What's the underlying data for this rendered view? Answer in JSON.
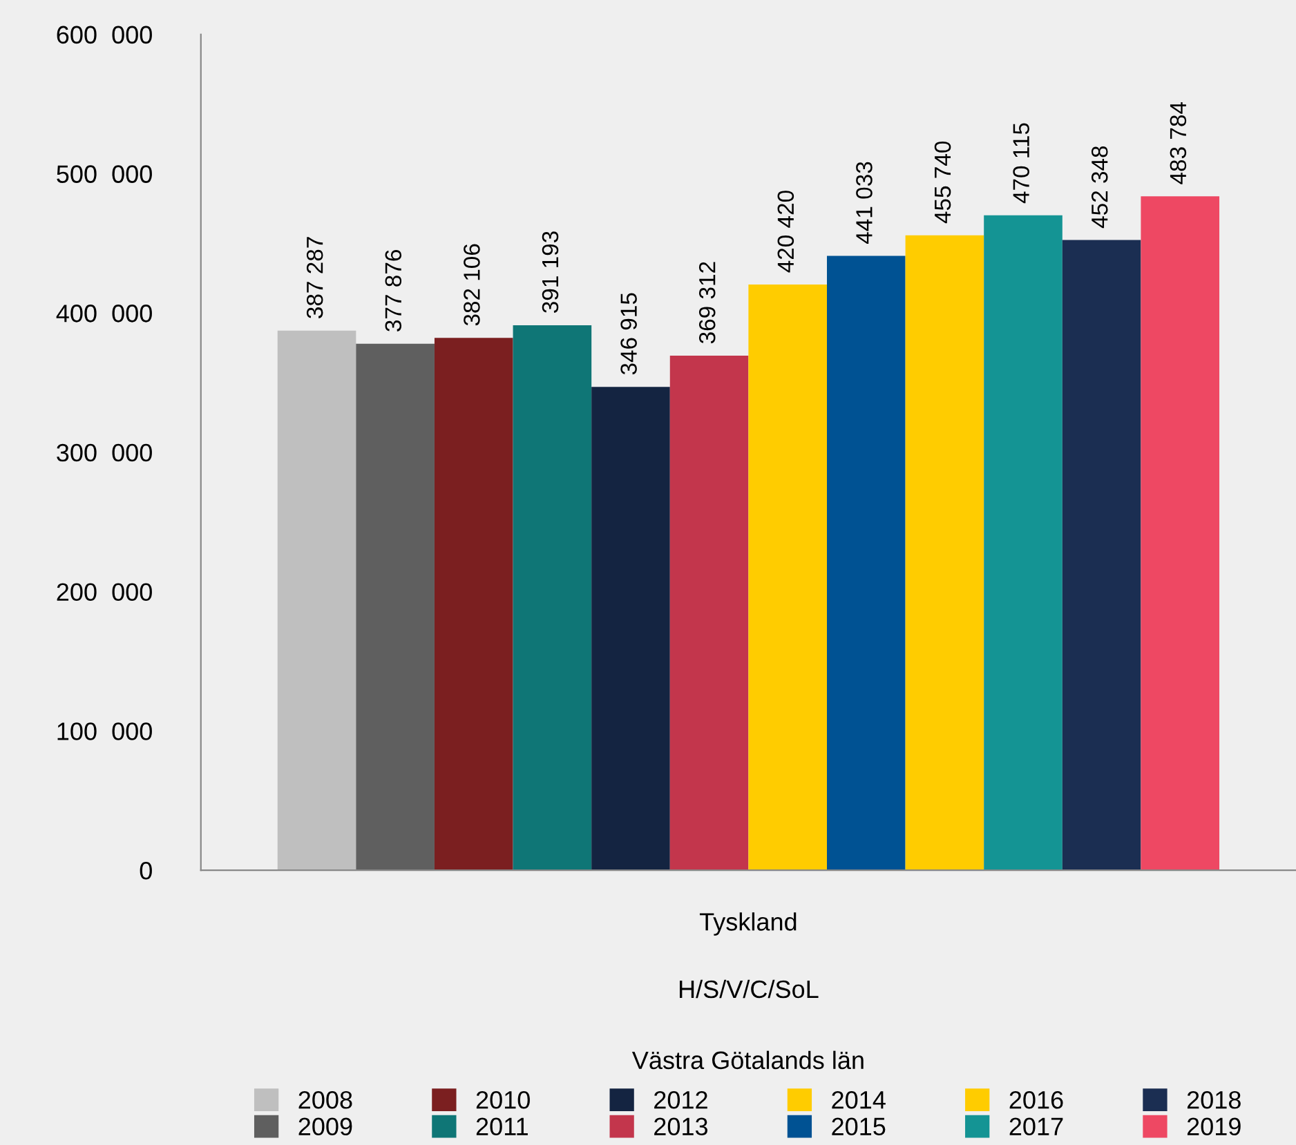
{
  "chart_data": {
    "type": "bar",
    "categories": [
      "Tyskland"
    ],
    "annotations": [
      "H/S/V/C/SoL",
      "Västra Götalands län"
    ],
    "ylim": [
      0,
      600000
    ],
    "yticks": [
      0,
      {
        "value": 100000,
        "label": "100  000"
      },
      {
        "value": 200000,
        "label": "200  000"
      },
      {
        "value": 300000,
        "label": "300  000"
      },
      {
        "value": 400000,
        "label": "400  000"
      },
      {
        "value": 500000,
        "label": "500  000"
      },
      {
        "value": 600000,
        "label": "600  000"
      }
    ],
    "grid": false,
    "legend": "bottom",
    "series": [
      {
        "name": "2008",
        "color": "#bfbfbf",
        "values": [
          387287
        ],
        "value_labels": [
          "387 287"
        ]
      },
      {
        "name": "2009",
        "color": "#5f5f5f",
        "values": [
          377876
        ],
        "value_labels": [
          "377 876"
        ]
      },
      {
        "name": "2010",
        "color": "#7b1f20",
        "values": [
          382106
        ],
        "value_labels": [
          "382 106"
        ]
      },
      {
        "name": "2011",
        "color": "#0f7676",
        "values": [
          391193
        ],
        "value_labels": [
          "391 193"
        ]
      },
      {
        "name": "2012",
        "color": "#142441",
        "values": [
          346915
        ],
        "value_labels": [
          "346 915"
        ]
      },
      {
        "name": "2013",
        "color": "#c3364c",
        "values": [
          369312
        ],
        "value_labels": [
          "369 312"
        ]
      },
      {
        "name": "2014",
        "color": "#ffcc00",
        "values": [
          420420
        ],
        "value_labels": [
          "420 420"
        ]
      },
      {
        "name": "2015",
        "color": "#005293",
        "values": [
          441033
        ],
        "value_labels": [
          "441 033"
        ]
      },
      {
        "name": "2016",
        "color": "#ffcc00",
        "values": [
          455740
        ],
        "value_labels": [
          "455 740"
        ]
      },
      {
        "name": "2017",
        "color": "#149494",
        "values": [
          470115
        ],
        "value_labels": [
          "470 115"
        ]
      },
      {
        "name": "2018",
        "color": "#1b2e52",
        "values": [
          452348
        ],
        "value_labels": [
          "452 348"
        ]
      },
      {
        "name": "2019",
        "color": "#ee4863",
        "values": [
          483784
        ],
        "value_labels": [
          "483 784"
        ]
      }
    ]
  }
}
